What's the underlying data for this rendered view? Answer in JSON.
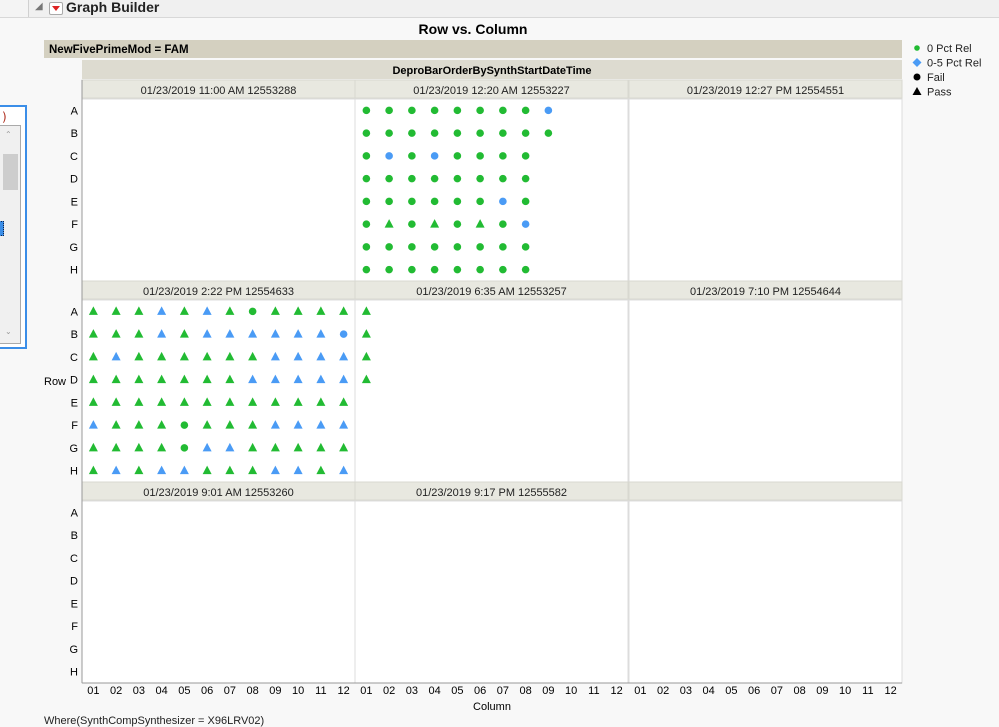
{
  "window": {
    "title": "Graph Builder"
  },
  "left_widget": {
    "fragment": ")"
  },
  "graph": {
    "title": "Row vs. Column",
    "group_label": "NewFivePrimeMod = FAM",
    "wrap_label": "DeproBarOrderBySynthStartDateTime",
    "x_label": "Column",
    "y_label": "Row",
    "rows": [
      "A",
      "B",
      "C",
      "D",
      "E",
      "F",
      "G",
      "H"
    ],
    "columns": [
      "01",
      "02",
      "03",
      "04",
      "05",
      "06",
      "07",
      "08",
      "09",
      "10",
      "11",
      "12"
    ],
    "where": "Where(SynthCompSynthesizer = X96LRV02)"
  },
  "legend": {
    "items": [
      {
        "label": "0 Pct Rel",
        "color": "#22bb33",
        "shape": "circle"
      },
      {
        "label": "0-5 Pct Rel",
        "color": "#4a9bf5",
        "shape": "diamond"
      },
      {
        "label": "Fail",
        "color": "#000000",
        "shape": "circle"
      },
      {
        "label": "Pass",
        "color": "#000000",
        "shape": "triangle"
      }
    ]
  },
  "colors": {
    "0 Pct Rel": "#22bb33",
    "0-5 Pct Rel": "#4a9bf5",
    "strip": "#e8e8e0",
    "group_band": "#d4d0c0"
  },
  "shapes": {
    "Fail": "circle",
    "Pass": "triangle"
  },
  "panels": [
    {
      "label": "01/23/2019 11:00 AM 12553288",
      "rows": {}
    },
    {
      "label": "01/23/2019 12:20 AM 12553227",
      "rows": {
        "A": [
          [
            "0 Pct Rel",
            "Fail"
          ],
          [
            "0 Pct Rel",
            "Fail"
          ],
          [
            "0 Pct Rel",
            "Fail"
          ],
          [
            "0 Pct Rel",
            "Fail"
          ],
          [
            "0 Pct Rel",
            "Fail"
          ],
          [
            "0 Pct Rel",
            "Fail"
          ],
          [
            "0 Pct Rel",
            "Fail"
          ],
          [
            "0 Pct Rel",
            "Fail"
          ],
          [
            "0-5 Pct Rel",
            "Fail"
          ]
        ],
        "B": [
          [
            "0 Pct Rel",
            "Fail"
          ],
          [
            "0 Pct Rel",
            "Fail"
          ],
          [
            "0 Pct Rel",
            "Fail"
          ],
          [
            "0 Pct Rel",
            "Fail"
          ],
          [
            "0 Pct Rel",
            "Fail"
          ],
          [
            "0 Pct Rel",
            "Fail"
          ],
          [
            "0 Pct Rel",
            "Fail"
          ],
          [
            "0 Pct Rel",
            "Fail"
          ],
          [
            "0 Pct Rel",
            "Fail"
          ]
        ],
        "C": [
          [
            "0 Pct Rel",
            "Fail"
          ],
          [
            "0-5 Pct Rel",
            "Fail"
          ],
          [
            "0 Pct Rel",
            "Fail"
          ],
          [
            "0-5 Pct Rel",
            "Fail"
          ],
          [
            "0 Pct Rel",
            "Fail"
          ],
          [
            "0 Pct Rel",
            "Fail"
          ],
          [
            "0 Pct Rel",
            "Fail"
          ],
          [
            "0 Pct Rel",
            "Fail"
          ]
        ],
        "D": [
          [
            "0 Pct Rel",
            "Fail"
          ],
          [
            "0 Pct Rel",
            "Fail"
          ],
          [
            "0 Pct Rel",
            "Fail"
          ],
          [
            "0 Pct Rel",
            "Fail"
          ],
          [
            "0 Pct Rel",
            "Fail"
          ],
          [
            "0 Pct Rel",
            "Fail"
          ],
          [
            "0 Pct Rel",
            "Fail"
          ],
          [
            "0 Pct Rel",
            "Fail"
          ]
        ],
        "E": [
          [
            "0 Pct Rel",
            "Fail"
          ],
          [
            "0 Pct Rel",
            "Fail"
          ],
          [
            "0 Pct Rel",
            "Fail"
          ],
          [
            "0 Pct Rel",
            "Fail"
          ],
          [
            "0 Pct Rel",
            "Fail"
          ],
          [
            "0 Pct Rel",
            "Fail"
          ],
          [
            "0-5 Pct Rel",
            "Fail"
          ],
          [
            "0 Pct Rel",
            "Fail"
          ]
        ],
        "F": [
          [
            "0 Pct Rel",
            "Fail"
          ],
          [
            "0 Pct Rel",
            "Pass"
          ],
          [
            "0 Pct Rel",
            "Fail"
          ],
          [
            "0 Pct Rel",
            "Pass"
          ],
          [
            "0 Pct Rel",
            "Fail"
          ],
          [
            "0 Pct Rel",
            "Pass"
          ],
          [
            "0 Pct Rel",
            "Fail"
          ],
          [
            "0-5 Pct Rel",
            "Fail"
          ]
        ],
        "G": [
          [
            "0 Pct Rel",
            "Fail"
          ],
          [
            "0 Pct Rel",
            "Fail"
          ],
          [
            "0 Pct Rel",
            "Fail"
          ],
          [
            "0 Pct Rel",
            "Fail"
          ],
          [
            "0 Pct Rel",
            "Fail"
          ],
          [
            "0 Pct Rel",
            "Fail"
          ],
          [
            "0 Pct Rel",
            "Fail"
          ],
          [
            "0 Pct Rel",
            "Fail"
          ]
        ],
        "H": [
          [
            "0 Pct Rel",
            "Fail"
          ],
          [
            "0 Pct Rel",
            "Fail"
          ],
          [
            "0 Pct Rel",
            "Fail"
          ],
          [
            "0 Pct Rel",
            "Fail"
          ],
          [
            "0 Pct Rel",
            "Fail"
          ],
          [
            "0 Pct Rel",
            "Fail"
          ],
          [
            "0 Pct Rel",
            "Fail"
          ],
          [
            "0 Pct Rel",
            "Fail"
          ]
        ]
      }
    },
    {
      "label": "01/23/2019 12:27 PM 12554551",
      "rows": {}
    },
    {
      "label": "01/23/2019 2:22 PM 12554633",
      "rows": {
        "A": [
          [
            "0 Pct Rel",
            "Pass"
          ],
          [
            "0 Pct Rel",
            "Pass"
          ],
          [
            "0 Pct Rel",
            "Pass"
          ],
          [
            "0-5 Pct Rel",
            "Pass"
          ],
          [
            "0 Pct Rel",
            "Pass"
          ],
          [
            "0-5 Pct Rel",
            "Pass"
          ],
          [
            "0 Pct Rel",
            "Pass"
          ],
          [
            "0 Pct Rel",
            "Fail"
          ],
          [
            "0 Pct Rel",
            "Pass"
          ],
          [
            "0 Pct Rel",
            "Pass"
          ],
          [
            "0 Pct Rel",
            "Pass"
          ],
          [
            "0 Pct Rel",
            "Pass"
          ]
        ],
        "B": [
          [
            "0 Pct Rel",
            "Pass"
          ],
          [
            "0 Pct Rel",
            "Pass"
          ],
          [
            "0 Pct Rel",
            "Pass"
          ],
          [
            "0-5 Pct Rel",
            "Pass"
          ],
          [
            "0 Pct Rel",
            "Pass"
          ],
          [
            "0-5 Pct Rel",
            "Pass"
          ],
          [
            "0-5 Pct Rel",
            "Pass"
          ],
          [
            "0-5 Pct Rel",
            "Pass"
          ],
          [
            "0-5 Pct Rel",
            "Pass"
          ],
          [
            "0-5 Pct Rel",
            "Pass"
          ],
          [
            "0-5 Pct Rel",
            "Pass"
          ],
          [
            "0-5 Pct Rel",
            "Fail"
          ]
        ],
        "C": [
          [
            "0 Pct Rel",
            "Pass"
          ],
          [
            "0-5 Pct Rel",
            "Pass"
          ],
          [
            "0 Pct Rel",
            "Pass"
          ],
          [
            "0 Pct Rel",
            "Pass"
          ],
          [
            "0 Pct Rel",
            "Pass"
          ],
          [
            "0 Pct Rel",
            "Pass"
          ],
          [
            "0 Pct Rel",
            "Pass"
          ],
          [
            "0 Pct Rel",
            "Pass"
          ],
          [
            "0-5 Pct Rel",
            "Pass"
          ],
          [
            "0-5 Pct Rel",
            "Pass"
          ],
          [
            "0-5 Pct Rel",
            "Pass"
          ],
          [
            "0-5 Pct Rel",
            "Pass"
          ]
        ],
        "D": [
          [
            "0 Pct Rel",
            "Pass"
          ],
          [
            "0 Pct Rel",
            "Pass"
          ],
          [
            "0 Pct Rel",
            "Pass"
          ],
          [
            "0 Pct Rel",
            "Pass"
          ],
          [
            "0 Pct Rel",
            "Pass"
          ],
          [
            "0 Pct Rel",
            "Pass"
          ],
          [
            "0 Pct Rel",
            "Pass"
          ],
          [
            "0-5 Pct Rel",
            "Pass"
          ],
          [
            "0-5 Pct Rel",
            "Pass"
          ],
          [
            "0-5 Pct Rel",
            "Pass"
          ],
          [
            "0-5 Pct Rel",
            "Pass"
          ],
          [
            "0-5 Pct Rel",
            "Pass"
          ]
        ],
        "E": [
          [
            "0 Pct Rel",
            "Pass"
          ],
          [
            "0 Pct Rel",
            "Pass"
          ],
          [
            "0 Pct Rel",
            "Pass"
          ],
          [
            "0 Pct Rel",
            "Pass"
          ],
          [
            "0 Pct Rel",
            "Pass"
          ],
          [
            "0 Pct Rel",
            "Pass"
          ],
          [
            "0 Pct Rel",
            "Pass"
          ],
          [
            "0 Pct Rel",
            "Pass"
          ],
          [
            "0 Pct Rel",
            "Pass"
          ],
          [
            "0 Pct Rel",
            "Pass"
          ],
          [
            "0 Pct Rel",
            "Pass"
          ],
          [
            "0 Pct Rel",
            "Pass"
          ]
        ],
        "F": [
          [
            "0-5 Pct Rel",
            "Pass"
          ],
          [
            "0 Pct Rel",
            "Pass"
          ],
          [
            "0 Pct Rel",
            "Pass"
          ],
          [
            "0 Pct Rel",
            "Pass"
          ],
          [
            "0 Pct Rel",
            "Fail"
          ],
          [
            "0 Pct Rel",
            "Pass"
          ],
          [
            "0 Pct Rel",
            "Pass"
          ],
          [
            "0 Pct Rel",
            "Pass"
          ],
          [
            "0-5 Pct Rel",
            "Pass"
          ],
          [
            "0-5 Pct Rel",
            "Pass"
          ],
          [
            "0-5 Pct Rel",
            "Pass"
          ],
          [
            "0-5 Pct Rel",
            "Pass"
          ]
        ],
        "G": [
          [
            "0 Pct Rel",
            "Pass"
          ],
          [
            "0 Pct Rel",
            "Pass"
          ],
          [
            "0 Pct Rel",
            "Pass"
          ],
          [
            "0 Pct Rel",
            "Pass"
          ],
          [
            "0 Pct Rel",
            "Fail"
          ],
          [
            "0-5 Pct Rel",
            "Pass"
          ],
          [
            "0-5 Pct Rel",
            "Pass"
          ],
          [
            "0 Pct Rel",
            "Pass"
          ],
          [
            "0 Pct Rel",
            "Pass"
          ],
          [
            "0 Pct Rel",
            "Pass"
          ],
          [
            "0 Pct Rel",
            "Pass"
          ],
          [
            "0 Pct Rel",
            "Pass"
          ]
        ],
        "H": [
          [
            "0 Pct Rel",
            "Pass"
          ],
          [
            "0-5 Pct Rel",
            "Pass"
          ],
          [
            "0 Pct Rel",
            "Pass"
          ],
          [
            "0-5 Pct Rel",
            "Pass"
          ],
          [
            "0-5 Pct Rel",
            "Pass"
          ],
          [
            "0 Pct Rel",
            "Pass"
          ],
          [
            "0 Pct Rel",
            "Pass"
          ],
          [
            "0 Pct Rel",
            "Pass"
          ],
          [
            "0-5 Pct Rel",
            "Pass"
          ],
          [
            "0-5 Pct Rel",
            "Pass"
          ],
          [
            "0 Pct Rel",
            "Pass"
          ],
          [
            "0-5 Pct Rel",
            "Pass"
          ]
        ]
      }
    },
    {
      "label": "01/23/2019 6:35 AM 12553257",
      "rows": {
        "A": [
          [
            "0 Pct Rel",
            "Pass"
          ]
        ],
        "B": [
          [
            "0 Pct Rel",
            "Pass"
          ]
        ],
        "C": [
          [
            "0 Pct Rel",
            "Pass"
          ]
        ],
        "D": [
          [
            "0 Pct Rel",
            "Pass"
          ]
        ]
      }
    },
    {
      "label": "01/23/2019 7:10 PM 12554644",
      "rows": {}
    },
    {
      "label": "01/23/2019 9:01 AM 12553260",
      "rows": {}
    },
    {
      "label": "01/23/2019 9:17 PM 12555582",
      "rows": {}
    },
    {
      "label": "",
      "rows": {}
    }
  ]
}
